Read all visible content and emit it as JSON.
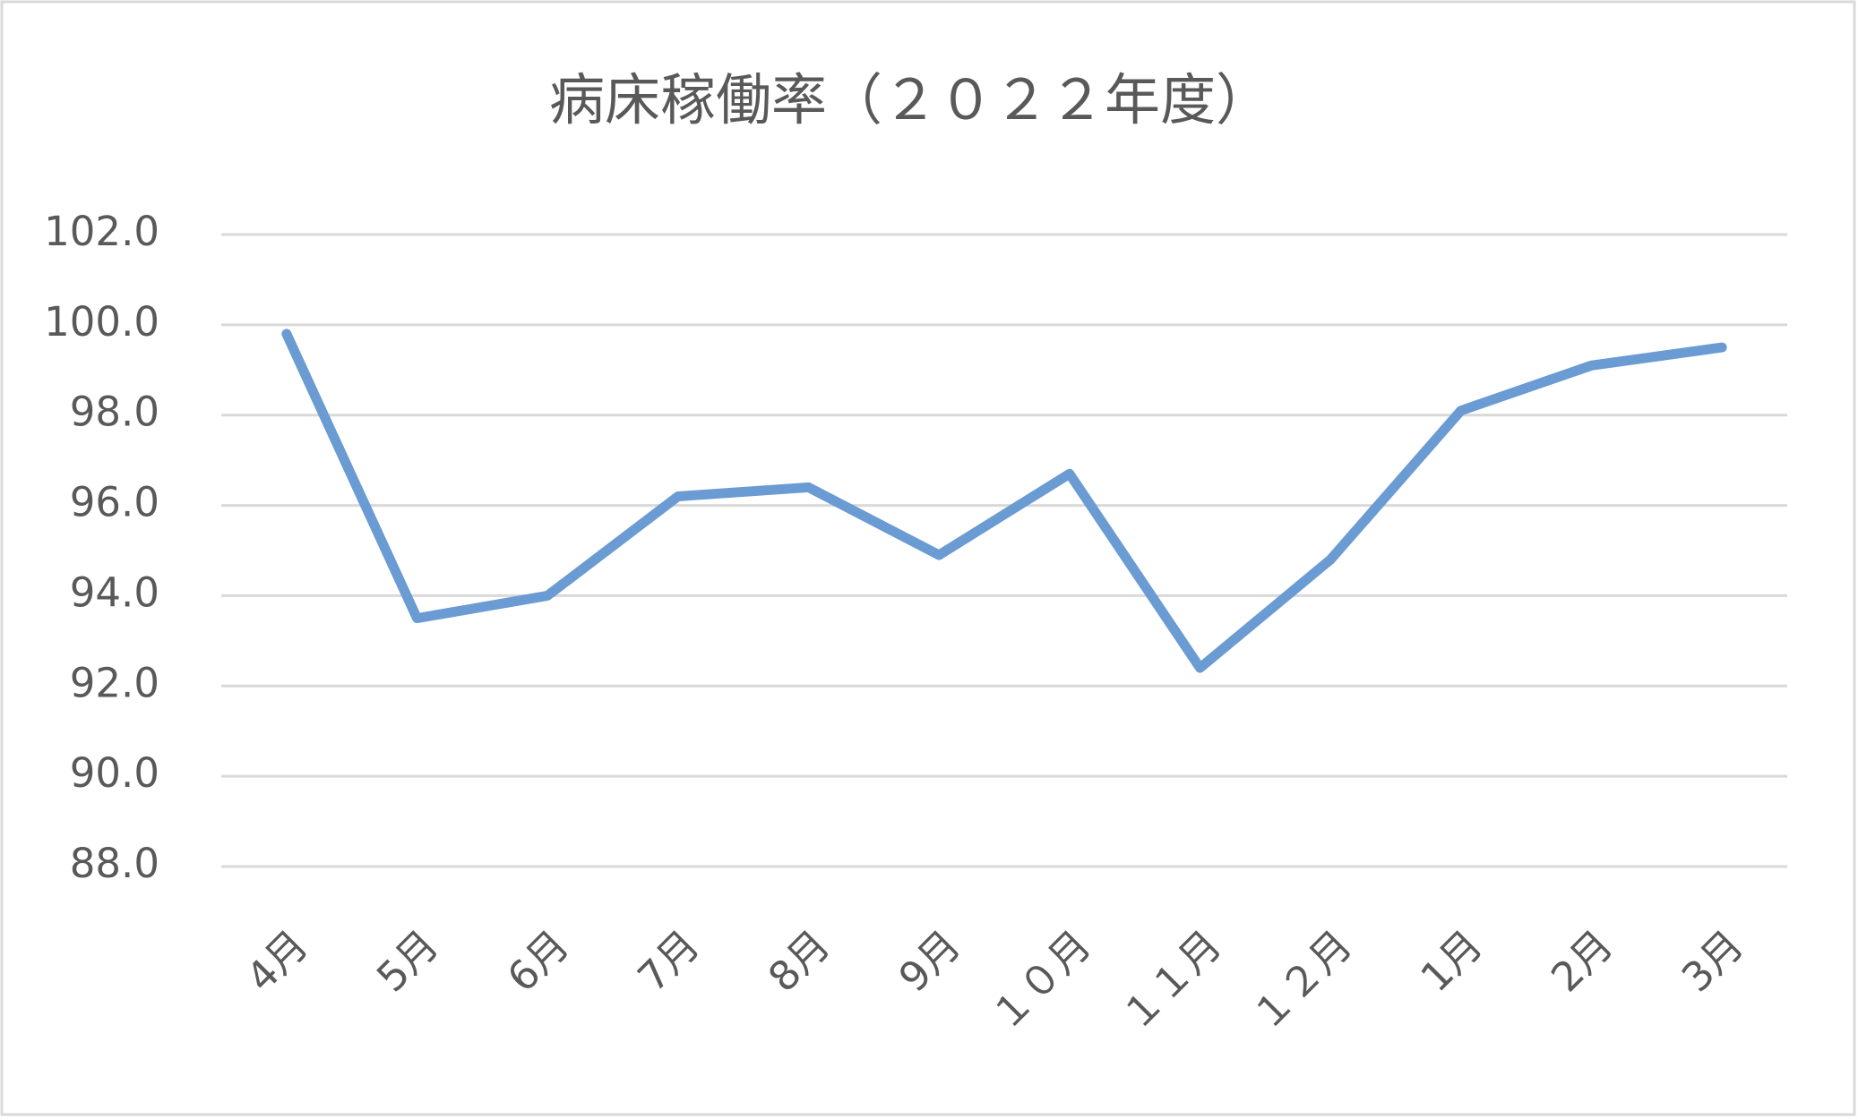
{
  "chart_data": {
    "type": "line",
    "title": "病床稼働率（２０２２年度）",
    "categories": [
      "4月",
      "5月",
      "6月",
      "7月",
      "8月",
      "9月",
      "１０月",
      "１１月",
      "１２月",
      "1月",
      "2月",
      "3月"
    ],
    "series": [
      {
        "name": "病床稼働率",
        "color": "#6a9bd3",
        "values": [
          99.8,
          93.5,
          94.0,
          96.2,
          96.4,
          94.9,
          96.7,
          92.4,
          94.8,
          98.1,
          99.1,
          99.5
        ]
      }
    ],
    "ylim": [
      88,
      102
    ],
    "yticks": [
      {
        "value": 88,
        "label": "88.0"
      },
      {
        "value": 90,
        "label": "90.0"
      },
      {
        "value": 92,
        "label": "92.0"
      },
      {
        "value": 94,
        "label": "94.0"
      },
      {
        "value": 96,
        "label": "96.0"
      },
      {
        "value": 98,
        "label": "98.0"
      },
      {
        "value": 100,
        "label": "100.0"
      },
      {
        "value": 102,
        "label": "102.0"
      }
    ],
    "grid": true
  }
}
